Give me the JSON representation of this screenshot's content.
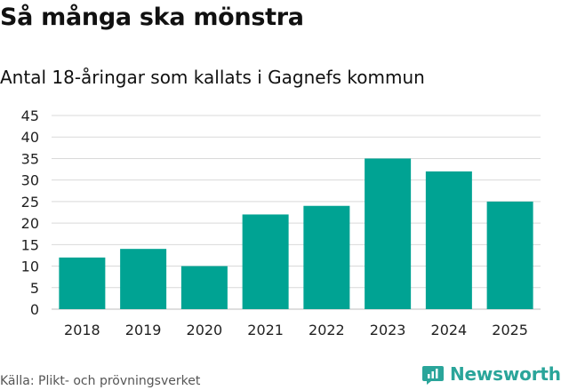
{
  "header": {
    "title": "Så många ska mönstra",
    "subtitle": "Antal 18-åringar som kallats i Gagnefs kommun"
  },
  "footer": {
    "source": "Källa: Plikt- och prövningsverket",
    "brand": "Newsworthy"
  },
  "colors": {
    "bar": "#00a393",
    "grid": "#d9d9d9",
    "brand": "#2aa59a"
  },
  "chart_data": {
    "type": "bar",
    "title": "Så många ska mönstra",
    "subtitle": "Antal 18-åringar som kallats i Gagnefs kommun",
    "xlabel": "",
    "ylabel": "",
    "categories": [
      "2018",
      "2019",
      "2020",
      "2021",
      "2022",
      "2023",
      "2024",
      "2025"
    ],
    "values": [
      12,
      14,
      10,
      22,
      24,
      35,
      32,
      25
    ],
    "ylim": [
      0,
      45
    ],
    "yticks": [
      0,
      5,
      10,
      15,
      20,
      25,
      30,
      35,
      40,
      45
    ],
    "grid": true,
    "legend": "none"
  }
}
